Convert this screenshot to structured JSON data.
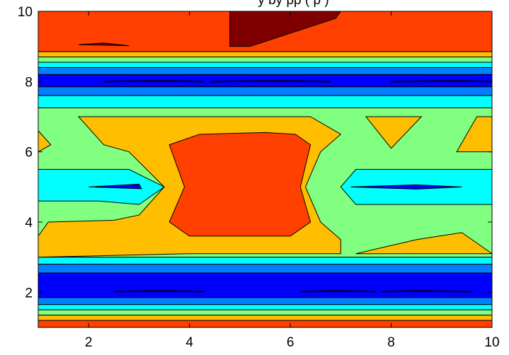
{
  "chart_data": {
    "type": "contour",
    "title": "... by ... (partially cut off at top edge)",
    "title_visible_text": "y     by   pp   (  p  )",
    "xlabel": "",
    "ylabel": "",
    "xlim": [
      1,
      10
    ],
    "ylim": [
      1,
      10
    ],
    "x_ticks": [
      2,
      4,
      6,
      8,
      10
    ],
    "y_ticks": [
      2,
      4,
      6,
      8,
      10
    ],
    "grid": false,
    "legend": "none",
    "colormap": "jet",
    "levels": [
      {
        "name": "level-0",
        "color": "#00008f"
      },
      {
        "name": "level-1",
        "color": "#0000ff"
      },
      {
        "name": "level-2",
        "color": "#0080ff"
      },
      {
        "name": "level-3",
        "color": "#00ffff"
      },
      {
        "name": "level-4",
        "color": "#80ff80"
      },
      {
        "name": "level-5",
        "color": "#ffbf00"
      },
      {
        "name": "level-6",
        "color": "#ff4000"
      },
      {
        "name": "level-7",
        "color": "#800000"
      }
    ],
    "bands": [
      {
        "y0": 8.85,
        "y1": 10.0,
        "level": 6
      },
      {
        "y0": 8.7,
        "y1": 8.85,
        "level": 5
      },
      {
        "y0": 8.55,
        "y1": 8.7,
        "level": 4
      },
      {
        "y0": 8.4,
        "y1": 8.55,
        "level": 3
      },
      {
        "y0": 8.2,
        "y1": 8.4,
        "level": 2
      },
      {
        "y0": 7.85,
        "y1": 8.2,
        "level": 1
      },
      {
        "y0": 7.6,
        "y1": 7.85,
        "level": 2
      },
      {
        "y0": 7.25,
        "y1": 7.6,
        "level": 3
      },
      {
        "y0": 3.0,
        "y1": 7.25,
        "level": 4
      },
      {
        "y0": 2.8,
        "y1": 3.0,
        "level": 3
      },
      {
        "y0": 2.55,
        "y1": 2.8,
        "level": 2
      },
      {
        "y0": 1.85,
        "y1": 2.55,
        "level": 1
      },
      {
        "y0": 1.65,
        "y1": 1.85,
        "level": 2
      },
      {
        "y0": 1.5,
        "y1": 1.65,
        "level": 3
      },
      {
        "y0": 1.35,
        "y1": 1.5,
        "level": 4
      },
      {
        "y0": 1.2,
        "y1": 1.35,
        "level": 5
      },
      {
        "y0": 1.0,
        "y1": 1.2,
        "level": 6
      }
    ],
    "regions": [
      {
        "name": "region-top-maxima",
        "level": 7,
        "points": [
          [
            4.8,
            10
          ],
          [
            7.0,
            10
          ],
          [
            6.9,
            9.8
          ],
          [
            5.2,
            9.0
          ],
          [
            4.8,
            9.0
          ]
        ]
      },
      {
        "name": "region-top-left-sliver",
        "level": 7,
        "points": [
          [
            1.8,
            9.05
          ],
          [
            2.3,
            9.1
          ],
          [
            2.8,
            9.02
          ]
        ]
      },
      {
        "name": "region-mid-orange-left",
        "level": 5,
        "points": [
          [
            1.0,
            3.6
          ],
          [
            1.2,
            4.0
          ],
          [
            2.5,
            4.05
          ],
          [
            3.0,
            4.2
          ],
          [
            3.5,
            5.0
          ],
          [
            2.8,
            6.0
          ],
          [
            2.3,
            6.2
          ],
          [
            1.8,
            7.0
          ],
          [
            3.5,
            7.0
          ],
          [
            5.5,
            7.0
          ],
          [
            6.4,
            7.0
          ],
          [
            7.0,
            6.5
          ],
          [
            6.6,
            6.0
          ],
          [
            6.3,
            5.0
          ],
          [
            6.6,
            4.0
          ],
          [
            7.0,
            3.5
          ],
          [
            7.0,
            3.1
          ],
          [
            4.0,
            3.1
          ],
          [
            1.0,
            3.0
          ]
        ]
      },
      {
        "name": "region-mid-orange-right-lower",
        "level": 5,
        "points": [
          [
            7.3,
            3.1
          ],
          [
            8.5,
            3.5
          ],
          [
            9.4,
            3.7
          ],
          [
            10.0,
            3.1
          ]
        ]
      },
      {
        "name": "region-mid-orange-right-upper",
        "level": 5,
        "points": [
          [
            9.3,
            6.0
          ],
          [
            9.7,
            7.0
          ],
          [
            10.0,
            7.0
          ],
          [
            10.0,
            6.0
          ]
        ]
      },
      {
        "name": "region-mid-orange-triangle",
        "level": 5,
        "points": [
          [
            7.5,
            7.0
          ],
          [
            8.6,
            7.0
          ],
          [
            8.0,
            6.1
          ]
        ]
      },
      {
        "name": "region-mid-orange-left-edge",
        "level": 5,
        "points": [
          [
            1.0,
            6.6
          ],
          [
            1.25,
            6.2
          ],
          [
            1.0,
            6.0
          ]
        ]
      },
      {
        "name": "region-center-red",
        "level": 6,
        "points": [
          [
            3.6,
            6.2
          ],
          [
            4.2,
            6.5
          ],
          [
            5.5,
            6.55
          ],
          [
            6.1,
            6.5
          ],
          [
            6.4,
            6.2
          ],
          [
            6.2,
            5.0
          ],
          [
            6.4,
            4.0
          ],
          [
            6.0,
            3.6
          ],
          [
            4.0,
            3.6
          ],
          [
            3.6,
            4.0
          ],
          [
            3.9,
            5.0
          ]
        ]
      },
      {
        "name": "region-left-cyan",
        "level": 3,
        "points": [
          [
            1.0,
            4.6
          ],
          [
            2.2,
            4.6
          ],
          [
            3.0,
            4.5
          ],
          [
            3.5,
            5.0
          ],
          [
            2.8,
            5.5
          ],
          [
            2.0,
            5.5
          ],
          [
            1.0,
            5.5
          ]
        ]
      },
      {
        "name": "region-right-cyan",
        "level": 3,
        "points": [
          [
            7.0,
            5.0
          ],
          [
            7.3,
            5.5
          ],
          [
            10.0,
            5.5
          ],
          [
            10.0,
            4.5
          ],
          [
            7.3,
            4.5
          ]
        ]
      },
      {
        "name": "region-left-blue-sliver",
        "level": 1,
        "points": [
          [
            2.0,
            5.0
          ],
          [
            3.0,
            5.08
          ],
          [
            3.05,
            4.95
          ]
        ]
      },
      {
        "name": "region-right-blue-sliver",
        "level": 1,
        "points": [
          [
            7.2,
            5.0
          ],
          [
            8.5,
            5.06
          ],
          [
            9.4,
            5.0
          ],
          [
            8.5,
            4.94
          ]
        ]
      }
    ],
    "contour_lines": [
      {
        "name": "line-upper-dark-left",
        "points": [
          [
            2.3,
            8.0
          ],
          [
            3.4,
            8.02
          ],
          [
            4.3,
            8.0
          ]
        ]
      },
      {
        "name": "line-upper-dark-mid",
        "points": [
          [
            4.4,
            8.0
          ],
          [
            5.8,
            8.02
          ],
          [
            6.8,
            8.0
          ]
        ]
      },
      {
        "name": "line-upper-dark-right",
        "points": [
          [
            8.0,
            8.0
          ],
          [
            9.3,
            8.02
          ],
          [
            10.0,
            8.0
          ]
        ]
      },
      {
        "name": "line-lower-dark-left",
        "points": [
          [
            2.5,
            2.02
          ],
          [
            3.4,
            2.04
          ],
          [
            4.3,
            2.02
          ]
        ]
      },
      {
        "name": "line-lower-dark-mid",
        "points": [
          [
            6.2,
            2.02
          ],
          [
            6.9,
            2.04
          ],
          [
            7.7,
            2.02
          ]
        ]
      },
      {
        "name": "line-lower-dark-right",
        "points": [
          [
            7.8,
            2.02
          ],
          [
            8.5,
            2.04
          ],
          [
            9.6,
            2.02
          ]
        ]
      }
    ]
  },
  "colors": {
    "background": "#ffffff",
    "axis": "#000000",
    "contour_stroke": "#000000"
  }
}
